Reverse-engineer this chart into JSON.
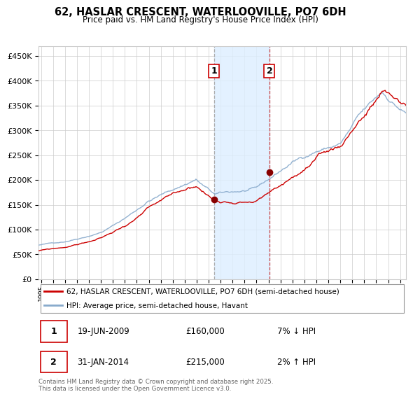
{
  "title": "62, HASLAR CRESCENT, WATERLOOVILLE, PO7 6DH",
  "subtitle": "Price paid vs. HM Land Registry's House Price Index (HPI)",
  "legend_line1": "62, HASLAR CRESCENT, WATERLOOVILLE, PO7 6DH (semi-detached house)",
  "legend_line2": "HPI: Average price, semi-detached house, Havant",
  "red_line_color": "#cc0000",
  "blue_line_color": "#88aacc",
  "purchase1_date_num": 2009.464,
  "purchase1_price": 160000,
  "purchase1_label": "1",
  "purchase1_date_str": "19-JUN-2009",
  "purchase1_hpi_pct": "7%",
  "purchase1_hpi_dir": "↓",
  "purchase2_date_num": 2014.083,
  "purchase2_price": 215000,
  "purchase2_label": "2",
  "purchase2_date_str": "31-JAN-2014",
  "purchase2_hpi_pct": "2%",
  "purchase2_hpi_dir": "↑",
  "shade_start": 2009.464,
  "shade_end": 2014.083,
  "ylim": [
    0,
    470000
  ],
  "xlim_start": 1994.8,
  "xlim_end": 2025.5,
  "yticks": [
    0,
    50000,
    100000,
    150000,
    200000,
    250000,
    300000,
    350000,
    400000,
    450000
  ],
  "footnote": "Contains HM Land Registry data © Crown copyright and database right 2025.\nThis data is licensed under the Open Government Licence v3.0."
}
